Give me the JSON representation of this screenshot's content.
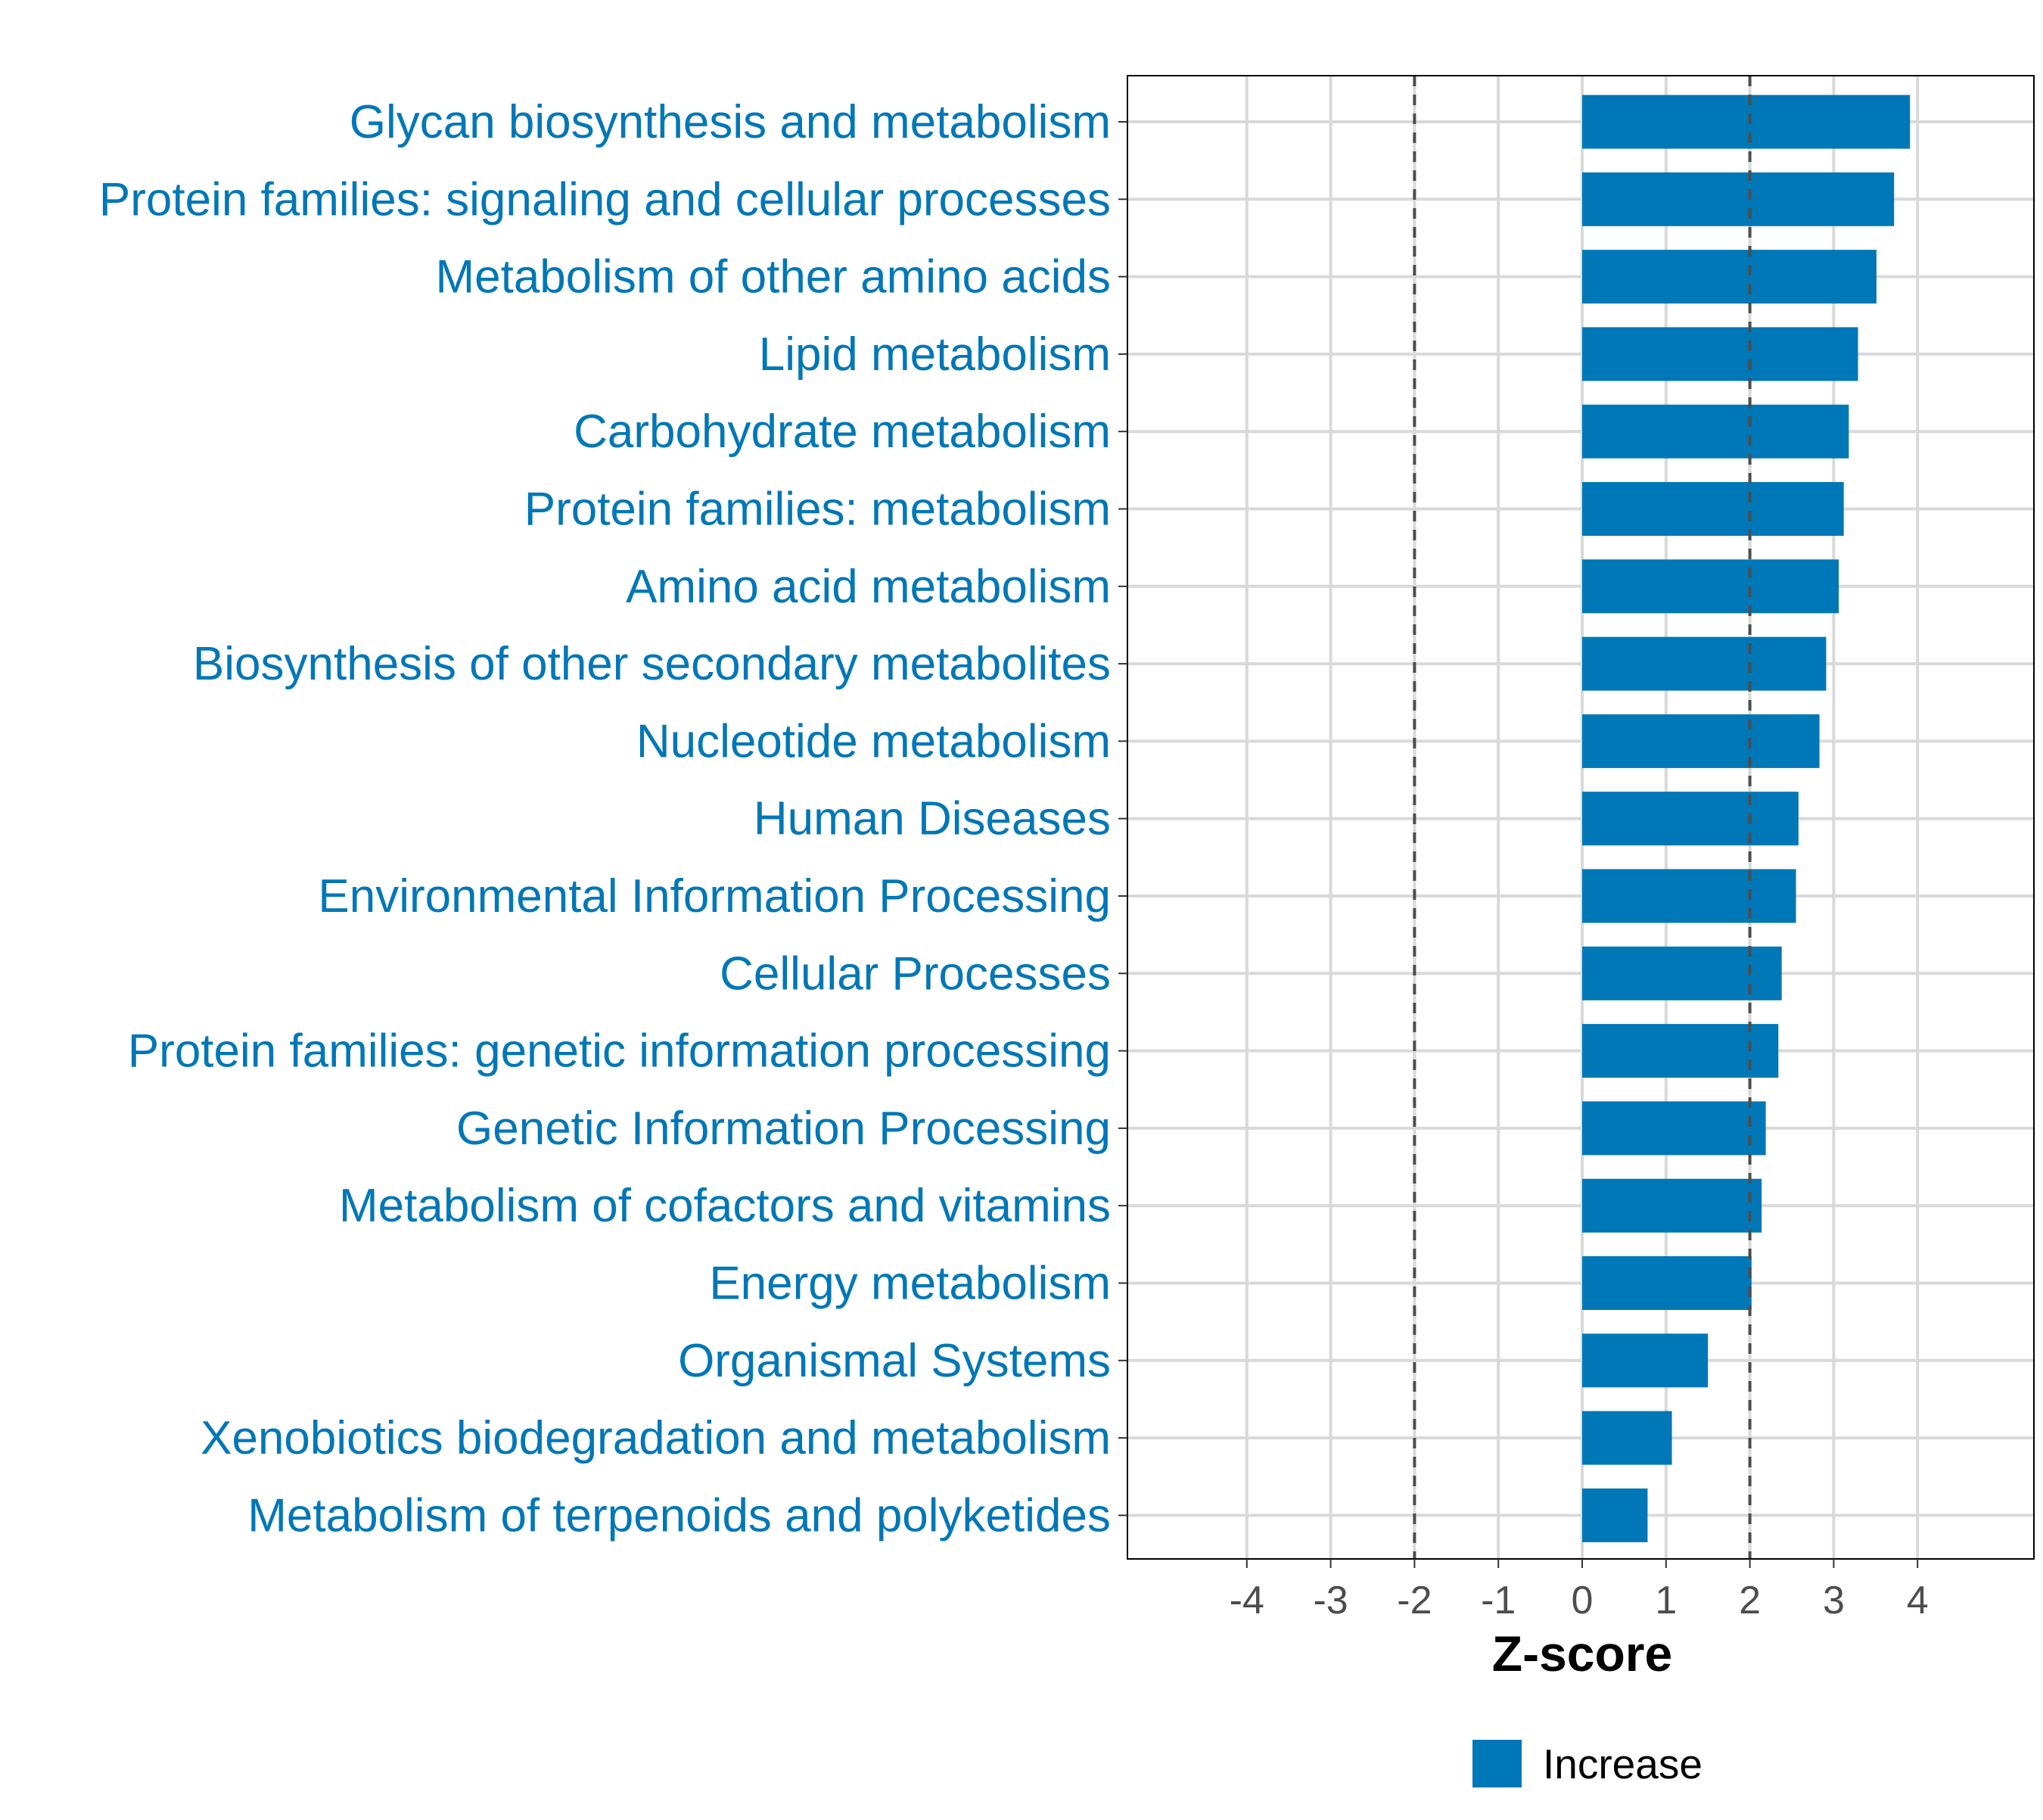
{
  "chart_data": {
    "type": "bar",
    "orientation": "horizontal",
    "title": "",
    "xlabel": "Z-score",
    "ylabel": "",
    "xlim": [
      -5,
      5.4
    ],
    "xticks": [
      -4,
      -3,
      -2,
      -1,
      0,
      1,
      2,
      3,
      4
    ],
    "xtick_labels": [
      "-4",
      "-3",
      "-2",
      "-1",
      "0",
      "1",
      "2",
      "3",
      "4"
    ],
    "reference_lines": [
      -2,
      2
    ],
    "grid": true,
    "legend": {
      "position": "bottom",
      "entries": [
        {
          "label": "Increase",
          "color": "#0077B6"
        }
      ]
    },
    "colors": {
      "bar": "#0077B6",
      "label": "#0077B6",
      "ref_line": "#4D4D4D",
      "grid": "#D9D9D9"
    },
    "categories": [
      "Glycan biosynthesis and metabolism",
      "Protein families: signaling and cellular processes",
      "Metabolism of other amino acids",
      "Lipid metabolism",
      "Carbohydrate metabolism",
      "Protein families: metabolism",
      "Amino acid metabolism",
      "Biosynthesis of other secondary metabolites",
      "Nucleotide metabolism",
      "Human Diseases",
      "Environmental Information Processing",
      "Cellular Processes",
      "Protein families: genetic information processing",
      "Genetic Information Processing",
      "Metabolism of cofactors and vitamins",
      "Energy metabolism",
      "Organismal Systems",
      "Xenobiotics biodegradation and metabolism",
      "Metabolism of terpenoids and polyketides"
    ],
    "values": [
      3.91,
      3.72,
      3.51,
      3.29,
      3.18,
      3.12,
      3.06,
      2.91,
      2.83,
      2.58,
      2.55,
      2.38,
      2.34,
      2.19,
      2.14,
      2.02,
      1.5,
      1.07,
      0.78
    ]
  }
}
